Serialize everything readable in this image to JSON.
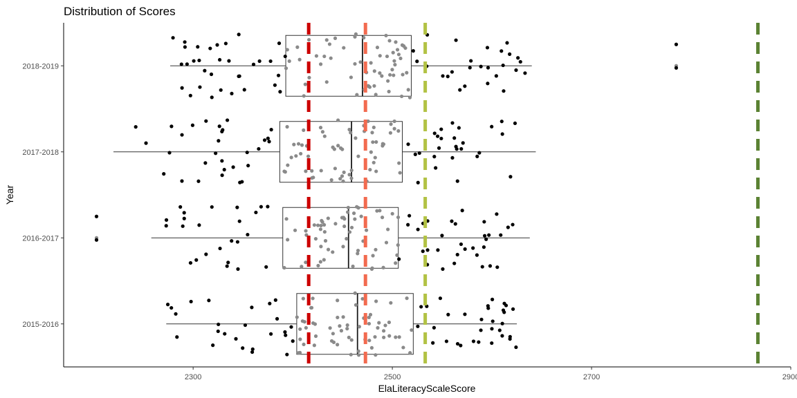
{
  "chart_data": {
    "type": "boxplot",
    "title": "Distribution of Scores",
    "xlabel": "ElaLiteracyScaleScore",
    "ylabel": "Year",
    "xlim": [
      2170,
      2900
    ],
    "x_ticks": [
      2300,
      2500,
      2700,
      2900
    ],
    "x_tick_labels": [
      "2300",
      "2500",
      "2700",
      "2900"
    ],
    "grid": false,
    "legend": "none",
    "categories": [
      "2018-2019",
      "2017-2018",
      "2016-2017",
      "2015-2016"
    ],
    "boxes": [
      {
        "category": "2018-2019",
        "whisker_low": 2277,
        "q1": 2393,
        "median": 2470,
        "q3": 2519,
        "whisker_high": 2640,
        "outliers": [
          2785
        ]
      },
      {
        "category": "2017-2018",
        "whisker_low": 2220,
        "q1": 2387,
        "median": 2459,
        "q3": 2510,
        "whisker_high": 2644,
        "outliers": []
      },
      {
        "category": "2016-2017",
        "whisker_low": 2258,
        "q1": 2390,
        "median": 2456,
        "q3": 2506,
        "whisker_high": 2638,
        "outliers": [
          2203
        ]
      },
      {
        "category": "2015-2016",
        "whisker_low": 2273,
        "q1": 2404,
        "median": 2465,
        "q3": 2521,
        "whisker_high": 2625,
        "outliers": []
      }
    ],
    "reference_lines": [
      {
        "value": 2416,
        "color": "#cc0000"
      },
      {
        "value": 2473,
        "color": "#f26b50"
      },
      {
        "value": 2533,
        "color": "#b2c244"
      },
      {
        "value": 2867,
        "color": "#5b8233"
      }
    ],
    "point_colors": {
      "inside_box": "#8a8a8a",
      "outside_box": "#000000"
    }
  }
}
